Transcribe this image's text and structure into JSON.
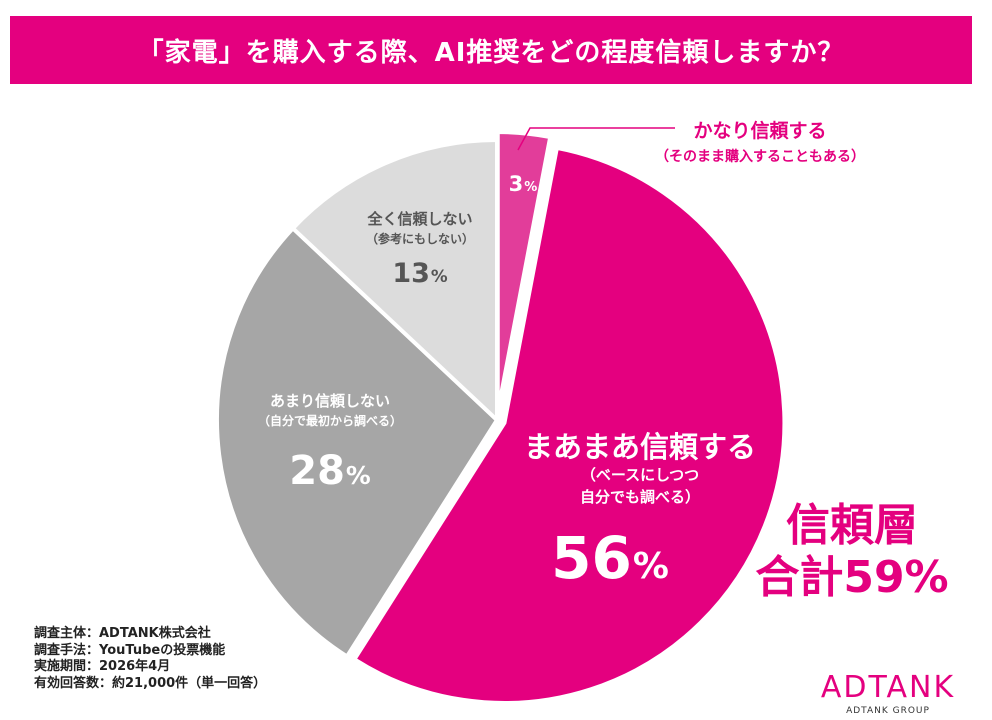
{
  "chart_data": {
    "type": "pie",
    "title": "「家電」を購入する際、AI推奨をどの程度信頼しますか？",
    "slices": [
      {
        "label": "かなり信頼する",
        "sublabel": "（そのまま購入することもある）",
        "value": 3,
        "display": "3",
        "color": "#e23d9a"
      },
      {
        "label": "まあまあ信頼する",
        "sublabel": "（ベースにしつつ",
        "sublabel2": "自分でも調べる）",
        "value": 56,
        "display": "56",
        "color": "#e4007f"
      },
      {
        "label": "あまり信頼しない",
        "sublabel": "（自分で最初から調べる）",
        "value": 28,
        "display": "28",
        "color": "#a6a6a6"
      },
      {
        "label": "全く信頼しない",
        "sublabel": "（参考にもしない）",
        "value": 13,
        "display": "13",
        "color": "#dcdcdc"
      }
    ],
    "percent_sign": "%",
    "start_angle": "12 o'clock",
    "direction": "clockwise"
  },
  "total": {
    "line1": "信頼層",
    "line2": "合計59%"
  },
  "meta": [
    "調査主体：ADTANK株式会社",
    "調査手法：YouTubeの投票機能",
    "実施期間：2026年4月",
    "有効回答数：約21,000件（単一回答）"
  ],
  "logo": {
    "main": "ADTANK",
    "sub": "ADTANK GROUP"
  },
  "colors": {
    "accent": "#e4007f",
    "white": "#ffffff",
    "dark_gray": "#555555"
  }
}
